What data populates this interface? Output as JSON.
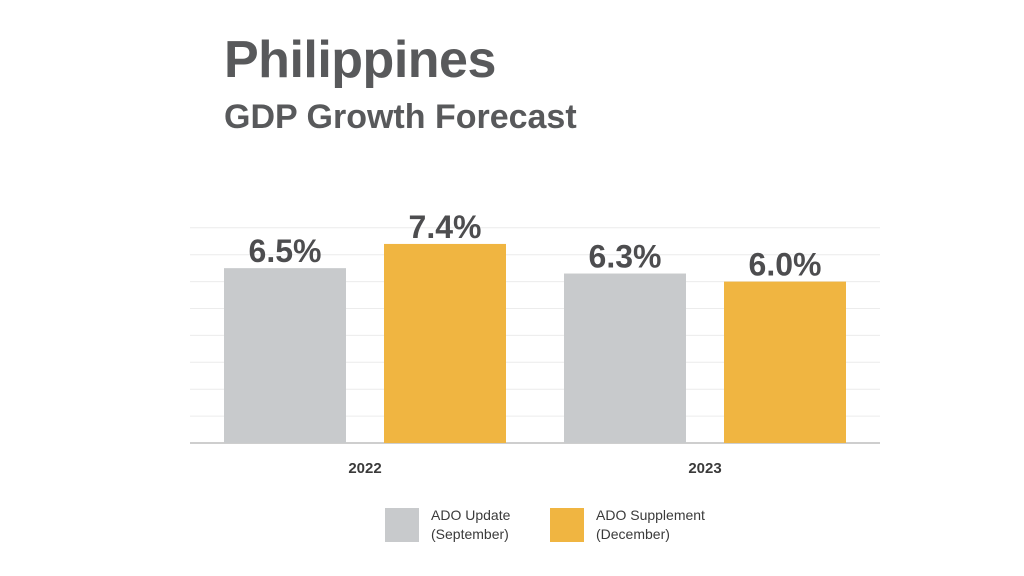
{
  "header": {
    "title": "Philippines",
    "subtitle": "GDP Growth Forecast"
  },
  "chart_data": {
    "type": "bar",
    "title": "Philippines",
    "subtitle": "GDP Growth Forecast",
    "categories": [
      "2022",
      "2023"
    ],
    "series": [
      {
        "name": "ADO Update (September)",
        "name_line1": "ADO Update",
        "name_line2": "(September)",
        "color": "#c8cacc",
        "values": [
          6.5,
          6.3
        ],
        "labels": [
          "6.5%",
          "6.3%"
        ]
      },
      {
        "name": "ADO Supplement (December)",
        "name_line1": "ADO Supplement",
        "name_line2": "(December)",
        "color": "#f0b541",
        "values": [
          7.4,
          6.0
        ],
        "labels": [
          "7.4%",
          "6.0%"
        ]
      }
    ],
    "ylim": [
      0,
      8
    ],
    "grid": true,
    "xlabel": "",
    "ylabel": "",
    "legend_position": "bottom"
  }
}
